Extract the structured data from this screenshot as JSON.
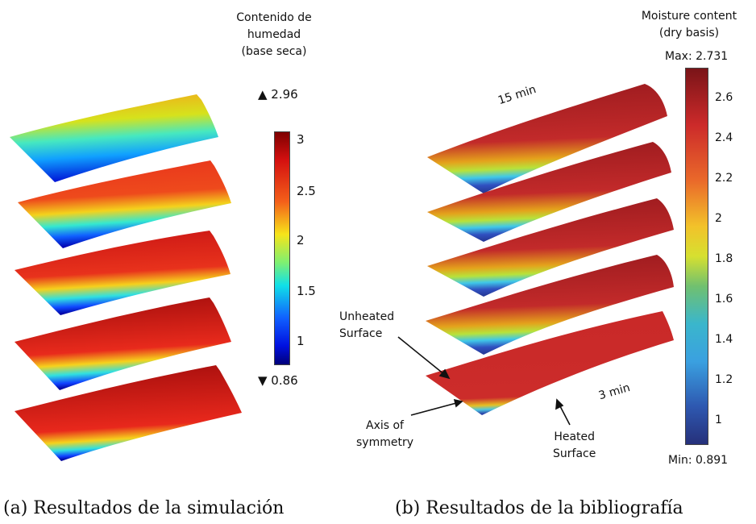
{
  "left_panel": {
    "legend_title_lines": [
      "Contenido de",
      "humedad",
      "(base seca)"
    ],
    "max_label": "▲ 2.96",
    "min_label": "▼ 0.86",
    "ticks": [
      "3",
      "2.5",
      "2",
      "1.5",
      "1"
    ],
    "caption": "(a) Resultados de la simulación"
  },
  "right_panel": {
    "legend_title_lines": [
      "Moisture content",
      "(dry basis)"
    ],
    "max_label": "Max: 2.731",
    "min_label": "Min: 0.891",
    "ticks": [
      "2.6",
      "2.4",
      "2.2",
      "2",
      "1.8",
      "1.6",
      "1.4",
      "1.2",
      "1"
    ],
    "annotations": {
      "top_time": "15 min",
      "bottom_time": "3 min",
      "unheated_line1": "Unheated",
      "unheated_line2": "Surface",
      "axis_line1": "Axis of",
      "axis_line2": "symmetry",
      "heated_line1": "Heated",
      "heated_line2": "Surface"
    },
    "caption": "(b) Resultados de la bibliografía"
  },
  "colors": {
    "jet_dark_red": "#8b0000",
    "jet_red": "#e8231c",
    "jet_yellow": "#f5f500",
    "jet_cyan": "#00e0e0",
    "jet_blue": "#0010ff",
    "jet_dark_blue": "#00007a"
  }
}
